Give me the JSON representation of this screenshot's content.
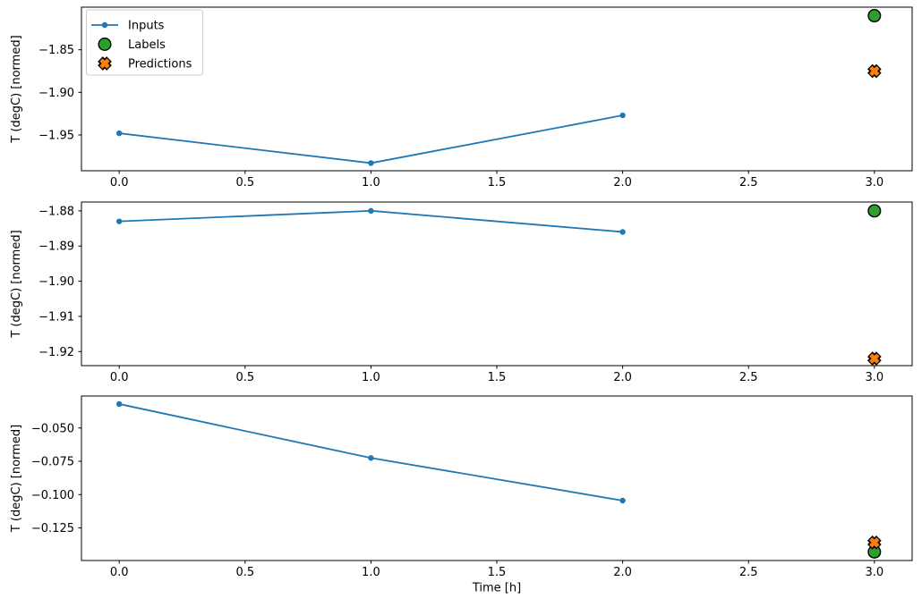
{
  "figure": {
    "background": "#ffffff",
    "xlabel": "Time [h]",
    "ylabel": "T (degC) [normed]",
    "axis_color": "#000000",
    "legend": {
      "position": "upper-left",
      "items": [
        {
          "label": "Inputs",
          "marker": "line-dot",
          "color": "#1f77b4",
          "edge": "#000000"
        },
        {
          "label": "Labels",
          "marker": "circle",
          "color": "#2ca02c",
          "edge": "#000000"
        },
        {
          "label": "Predictions",
          "marker": "x",
          "color": "#ff7f0e",
          "edge": "#000000"
        }
      ]
    }
  },
  "chart_data": [
    {
      "type": "line",
      "title": "",
      "xlabel": "",
      "ylabel": "T (degC) [normed]",
      "xlim": [
        -0.15,
        3.15
      ],
      "ylim": [
        -1.992,
        -1.8
      ],
      "xtick_values": [
        0.0,
        0.5,
        1.0,
        1.5,
        2.0,
        2.5,
        3.0
      ],
      "xtick_labels": [
        "0.0",
        "0.5",
        "1.0",
        "1.5",
        "2.0",
        "2.5",
        "3.0"
      ],
      "ytick_values": [
        -1.85,
        -1.9,
        -1.95
      ],
      "ytick_labels": [
        "−1.85",
        "−1.90",
        "−1.95"
      ],
      "legend": true,
      "grid": false,
      "series": [
        {
          "name": "Inputs",
          "marker": "line-dot",
          "color": "#1f77b4",
          "x": [
            0,
            1,
            2
          ],
          "y": [
            -1.948,
            -1.983,
            -1.927
          ]
        },
        {
          "name": "Labels",
          "marker": "circle",
          "color": "#2ca02c",
          "x": [
            3
          ],
          "y": [
            -1.81
          ]
        },
        {
          "name": "Predictions",
          "marker": "x",
          "color": "#ff7f0e",
          "x": [
            3
          ],
          "y": [
            -1.875
          ]
        }
      ]
    },
    {
      "type": "line",
      "title": "",
      "xlabel": "",
      "ylabel": "T (degC) [normed]",
      "xlim": [
        -0.15,
        3.15
      ],
      "ylim": [
        -1.924,
        -1.8775
      ],
      "xtick_values": [
        0.0,
        0.5,
        1.0,
        1.5,
        2.0,
        2.5,
        3.0
      ],
      "xtick_labels": [
        "0.0",
        "0.5",
        "1.0",
        "1.5",
        "2.0",
        "2.5",
        "3.0"
      ],
      "ytick_values": [
        -1.88,
        -1.89,
        -1.9,
        -1.91,
        -1.92
      ],
      "ytick_labels": [
        "−1.88",
        "−1.89",
        "−1.90",
        "−1.91",
        "−1.92"
      ],
      "legend": false,
      "grid": false,
      "series": [
        {
          "name": "Inputs",
          "marker": "line-dot",
          "color": "#1f77b4",
          "x": [
            0,
            1,
            2
          ],
          "y": [
            -1.883,
            -1.88,
            -1.886
          ]
        },
        {
          "name": "Labels",
          "marker": "circle",
          "color": "#2ca02c",
          "x": [
            3
          ],
          "y": [
            -1.88
          ]
        },
        {
          "name": "Predictions",
          "marker": "x",
          "color": "#ff7f0e",
          "x": [
            3
          ],
          "y": [
            -1.922
          ]
        }
      ]
    },
    {
      "type": "line",
      "title": "",
      "xlabel": "Time [h]",
      "ylabel": "T (degC) [normed]",
      "xlim": [
        -0.15,
        3.15
      ],
      "ylim": [
        -0.1495,
        -0.026
      ],
      "xtick_values": [
        0.0,
        0.5,
        1.0,
        1.5,
        2.0,
        2.5,
        3.0
      ],
      "xtick_labels": [
        "0.0",
        "0.5",
        "1.0",
        "1.5",
        "2.0",
        "2.5",
        "3.0"
      ],
      "ytick_values": [
        -0.05,
        -0.075,
        -0.1,
        -0.125
      ],
      "ytick_labels": [
        "−0.050",
        "−0.075",
        "−0.100",
        "−0.125"
      ],
      "legend": false,
      "grid": false,
      "series": [
        {
          "name": "Inputs",
          "marker": "line-dot",
          "color": "#1f77b4",
          "x": [
            0,
            1,
            2
          ],
          "y": [
            -0.032,
            -0.0725,
            -0.1045
          ]
        },
        {
          "name": "Labels",
          "marker": "circle",
          "color": "#2ca02c",
          "x": [
            3
          ],
          "y": [
            -0.143
          ]
        },
        {
          "name": "Predictions",
          "marker": "x",
          "color": "#ff7f0e",
          "x": [
            3
          ],
          "y": [
            -0.136
          ]
        }
      ]
    }
  ]
}
